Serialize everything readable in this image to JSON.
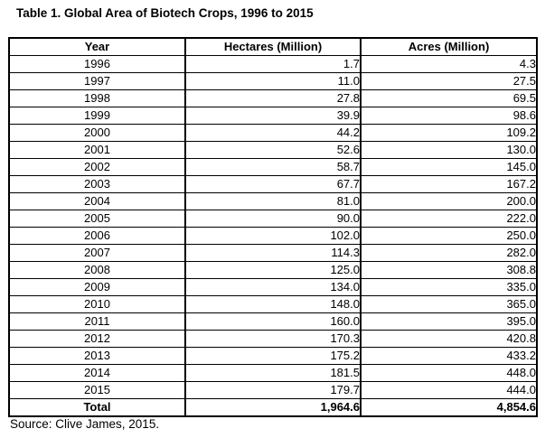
{
  "title": "Table 1. Global Area of Biotech Crops, 1996 to 2015",
  "table": {
    "columns": [
      "Year",
      "Hectares (Million)",
      "Acres (Million)"
    ],
    "rows": [
      [
        "1996",
        "1.7",
        "4.3"
      ],
      [
        "1997",
        "11.0",
        "27.5"
      ],
      [
        "1998",
        "27.8",
        "69.5"
      ],
      [
        "1999",
        "39.9",
        "98.6"
      ],
      [
        "2000",
        "44.2",
        "109.2"
      ],
      [
        "2001",
        "52.6",
        "130.0"
      ],
      [
        "2002",
        "58.7",
        "145.0"
      ],
      [
        "2003",
        "67.7",
        "167.2"
      ],
      [
        "2004",
        "81.0",
        "200.0"
      ],
      [
        "2005",
        "90.0",
        "222.0"
      ],
      [
        "2006",
        "102.0",
        "250.0"
      ],
      [
        "2007",
        "114.3",
        "282.0"
      ],
      [
        "2008",
        "125.0",
        "308.8"
      ],
      [
        "2009",
        "134.0",
        "335.0"
      ],
      [
        "2010",
        "148.0",
        "365.0"
      ],
      [
        "2011",
        "160.0",
        "395.0"
      ],
      [
        "2012",
        "170.3",
        "420.8"
      ],
      [
        "2013",
        "175.2",
        "433.2"
      ],
      [
        "2014",
        "181.5",
        "448.0"
      ],
      [
        "2015",
        "179.7",
        "444.0"
      ]
    ],
    "total_row": [
      "Total",
      "1,964.6",
      "4,854.6"
    ]
  },
  "source": "Source: Clive James, 2015.",
  "colors": {
    "text": "#000000",
    "border": "#000000",
    "background": "#ffffff"
  },
  "chart_data": {
    "type": "table",
    "title": "Table 1. Global Area of Biotech Crops, 1996 to 2015",
    "categories": [
      "1996",
      "1997",
      "1998",
      "1999",
      "2000",
      "2001",
      "2002",
      "2003",
      "2004",
      "2005",
      "2006",
      "2007",
      "2008",
      "2009",
      "2010",
      "2011",
      "2012",
      "2013",
      "2014",
      "2015"
    ],
    "series": [
      {
        "name": "Hectares (Million)",
        "values": [
          1.7,
          11.0,
          27.8,
          39.9,
          44.2,
          52.6,
          58.7,
          67.7,
          81.0,
          90.0,
          102.0,
          114.3,
          125.0,
          134.0,
          148.0,
          160.0,
          170.3,
          175.2,
          181.5,
          179.7
        ],
        "total": 1964.6
      },
      {
        "name": "Acres (Million)",
        "values": [
          4.3,
          27.5,
          69.5,
          98.6,
          109.2,
          130.0,
          145.0,
          167.2,
          200.0,
          222.0,
          250.0,
          282.0,
          308.8,
          335.0,
          365.0,
          395.0,
          420.8,
          433.2,
          448.0,
          444.0
        ],
        "total": 4854.6
      }
    ],
    "source": "Source: Clive James, 2015."
  }
}
